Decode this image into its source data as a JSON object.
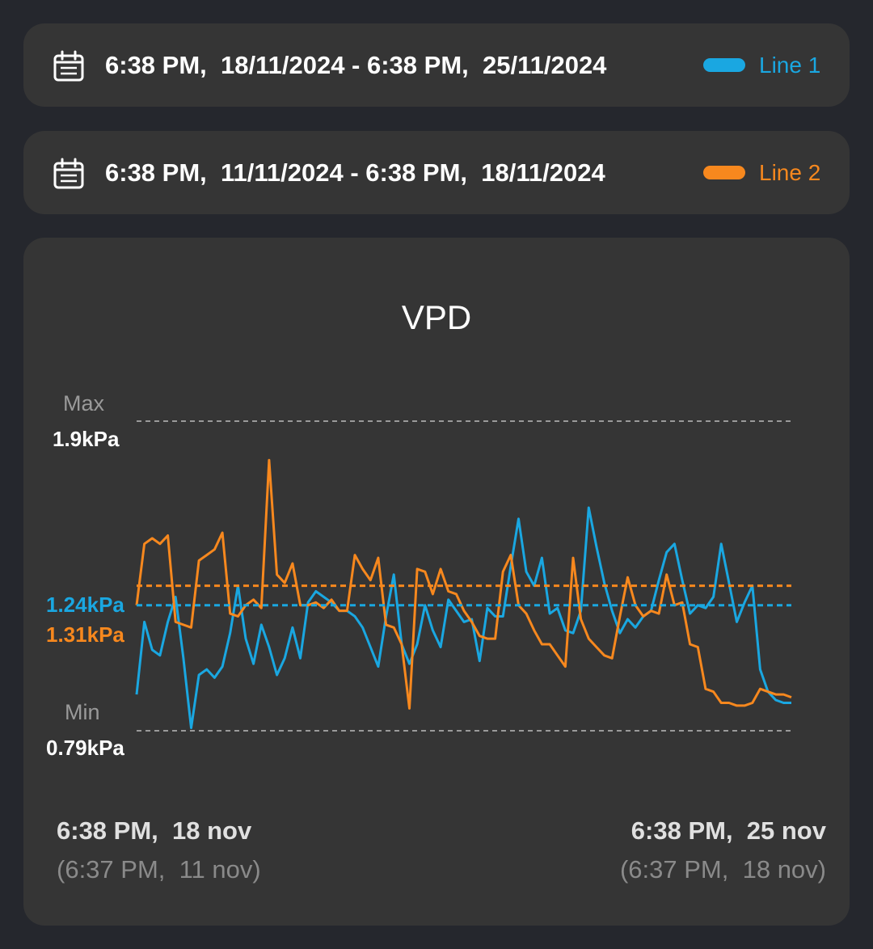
{
  "ranges": [
    {
      "text": "6:38 PM,  18/11/2024 - 6:38 PM,  25/11/2024",
      "legend": "Line 1",
      "color": "#1aa7e1",
      "icon": "calendar-icon"
    },
    {
      "text": "6:38 PM,  11/11/2024 - 6:38 PM,  18/11/2024",
      "legend": "Line 2",
      "color": "#f7881e",
      "icon": "calendar-icon"
    }
  ],
  "chart_data": {
    "type": "line",
    "title": "VPD",
    "unit": "kPa",
    "max_label": "Max",
    "max_value": "1.9kPa",
    "min_label": "Min",
    "min_value": "0.79kPa",
    "ylim": [
      0.79,
      1.9
    ],
    "grid": false,
    "x_start": {
      "primary": "6:38 PM,  18 nov",
      "secondary": "(6:37 PM,  11 nov)"
    },
    "x_end": {
      "primary": "6:38 PM,  25 nov",
      "secondary": "(6:37 PM,  18 nov)"
    },
    "x_hours": [
      0,
      2,
      4,
      6,
      8,
      10,
      12,
      14,
      16,
      18,
      20,
      22,
      24,
      26,
      28,
      30,
      32,
      34,
      36,
      38,
      40,
      42,
      44,
      46,
      48,
      50,
      52,
      54,
      56,
      58,
      60,
      62,
      64,
      66,
      68,
      70,
      72,
      74,
      76,
      78,
      80,
      82,
      84,
      86,
      88,
      90,
      92,
      94,
      96,
      98,
      100,
      102,
      104,
      106,
      108,
      110,
      112,
      114,
      116,
      118,
      120,
      122,
      124,
      126,
      128,
      130,
      132,
      134,
      136,
      138,
      140,
      142,
      144,
      146,
      148,
      150,
      152,
      154,
      156,
      158,
      160,
      162,
      164,
      166,
      168
    ],
    "series": [
      {
        "name": "Line 1",
        "color": "#1aa7e1",
        "average": 1.24,
        "average_label": "1.24kPa",
        "values": [
          0.92,
          1.18,
          1.08,
          1.06,
          1.18,
          1.27,
          1.05,
          0.8,
          0.99,
          1.01,
          0.98,
          1.02,
          1.14,
          1.31,
          1.12,
          1.03,
          1.17,
          1.09,
          0.99,
          1.05,
          1.16,
          1.05,
          1.25,
          1.29,
          1.27,
          1.25,
          1.22,
          1.22,
          1.2,
          1.16,
          1.09,
          1.02,
          1.2,
          1.35,
          1.1,
          1.03,
          1.1,
          1.24,
          1.15,
          1.09,
          1.26,
          1.22,
          1.18,
          1.19,
          1.04,
          1.23,
          1.2,
          1.2,
          1.38,
          1.55,
          1.36,
          1.31,
          1.41,
          1.21,
          1.23,
          1.15,
          1.14,
          1.22,
          1.59,
          1.45,
          1.32,
          1.22,
          1.14,
          1.19,
          1.16,
          1.2,
          1.22,
          1.33,
          1.43,
          1.46,
          1.33,
          1.21,
          1.24,
          1.23,
          1.27,
          1.46,
          1.32,
          1.18,
          1.25,
          1.31,
          1.01,
          0.93,
          0.9,
          0.89,
          0.89
        ]
      },
      {
        "name": "Line 2",
        "color": "#f7881e",
        "average": 1.31,
        "average_label": "1.31kPa",
        "values": [
          1.24,
          1.46,
          1.48,
          1.46,
          1.49,
          1.18,
          1.17,
          1.16,
          1.4,
          1.42,
          1.44,
          1.5,
          1.21,
          1.2,
          1.24,
          1.26,
          1.23,
          1.76,
          1.35,
          1.32,
          1.39,
          1.24,
          1.24,
          1.25,
          1.23,
          1.26,
          1.22,
          1.22,
          1.42,
          1.37,
          1.33,
          1.41,
          1.17,
          1.16,
          1.1,
          0.87,
          1.37,
          1.36,
          1.28,
          1.37,
          1.29,
          1.28,
          1.22,
          1.18,
          1.13,
          1.12,
          1.12,
          1.36,
          1.42,
          1.24,
          1.21,
          1.15,
          1.1,
          1.1,
          1.06,
          1.02,
          1.41,
          1.19,
          1.12,
          1.09,
          1.06,
          1.05,
          1.2,
          1.34,
          1.24,
          1.2,
          1.22,
          1.21,
          1.35,
          1.24,
          1.25,
          1.1,
          1.09,
          0.94,
          0.93,
          0.89,
          0.89,
          0.88,
          0.88,
          0.89,
          0.94,
          0.93,
          0.92,
          0.92,
          0.91
        ]
      }
    ]
  }
}
